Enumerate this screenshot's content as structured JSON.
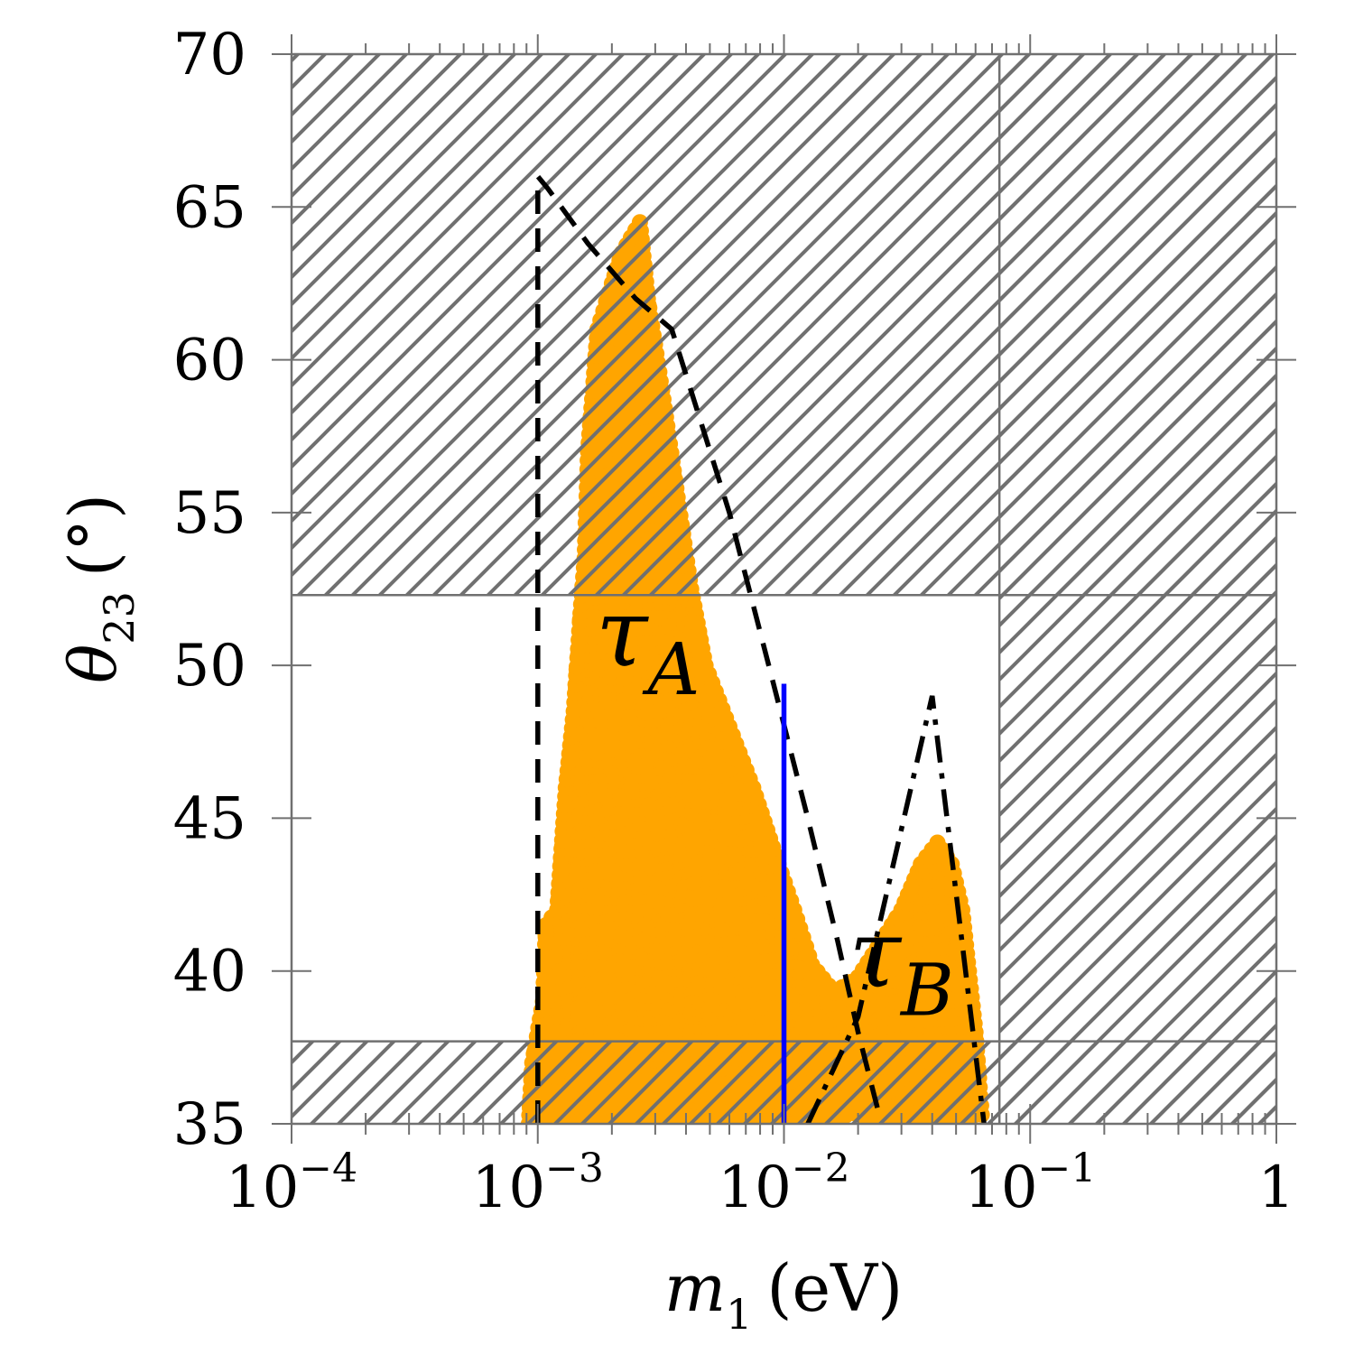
{
  "chart_data": {
    "type": "scatter",
    "title": "",
    "xlabel": {
      "symbol": "m",
      "sub": "1",
      "unit": "(eV)"
    },
    "ylabel": {
      "symbol": "θ",
      "sub": "23",
      "unit": "(°)"
    },
    "xscale": "log",
    "xlim": [
      0.0001,
      1
    ],
    "ylim": [
      35,
      70
    ],
    "x_ticks": [
      {
        "value": 0.0001,
        "base": "10",
        "exp": "−4"
      },
      {
        "value": 0.001,
        "base": "10",
        "exp": "−3"
      },
      {
        "value": 0.01,
        "base": "10",
        "exp": "−2"
      },
      {
        "value": 0.1,
        "base": "10",
        "exp": "−1"
      },
      {
        "value": 1,
        "base": "1",
        "exp": ""
      }
    ],
    "y_ticks": [
      35,
      40,
      45,
      50,
      55,
      60,
      65,
      70
    ],
    "grid": false,
    "excluded_regions": [
      {
        "x": [
          0.0001,
          1
        ],
        "y": [
          52.3,
          70
        ]
      },
      {
        "x": [
          0.0001,
          1
        ],
        "y": [
          35,
          37.7
        ]
      },
      {
        "x": [
          0.075,
          1
        ],
        "y": [
          35,
          70
        ]
      }
    ],
    "allowed_region": {
      "x": [
        0.0001,
        0.075
      ],
      "y": [
        37.7,
        52.3
      ]
    },
    "scatter_envelope": [
      [
        0.00092,
        35.0
      ],
      [
        0.00095,
        37.0
      ],
      [
        0.00105,
        39.0
      ],
      [
        0.00108,
        41.5
      ],
      [
        0.0012,
        42.0
      ],
      [
        0.0013,
        46.0
      ],
      [
        0.0014,
        48.5
      ],
      [
        0.0015,
        52.0
      ],
      [
        0.00155,
        53.5
      ],
      [
        0.0016,
        57.0
      ],
      [
        0.00175,
        61.0
      ],
      [
        0.002,
        62.5
      ],
      [
        0.0022,
        63.5
      ],
      [
        0.0026,
        64.5
      ],
      [
        0.0028,
        62.0
      ],
      [
        0.0032,
        59.0
      ],
      [
        0.0037,
        55.5
      ],
      [
        0.0042,
        52.5
      ],
      [
        0.0048,
        50.0
      ],
      [
        0.006,
        48.0
      ],
      [
        0.0075,
        46.0
      ],
      [
        0.0095,
        43.5
      ],
      [
        0.011,
        42.0
      ],
      [
        0.013,
        40.2
      ],
      [
        0.016,
        39.3
      ],
      [
        0.02,
        39.8
      ],
      [
        0.025,
        41.0
      ],
      [
        0.03,
        42.0
      ],
      [
        0.036,
        43.5
      ],
      [
        0.042,
        44.2
      ],
      [
        0.048,
        43.5
      ],
      [
        0.053,
        42.0
      ],
      [
        0.06,
        38.0
      ],
      [
        0.064,
        35.0
      ]
    ],
    "series": [
      {
        "style": "dashed",
        "color": "#000000",
        "points": [
          [
            0.001,
            35.0
          ],
          [
            0.001,
            66.0
          ],
          [
            0.0011,
            65.6
          ],
          [
            0.0016,
            63.8
          ],
          [
            0.0025,
            62.0
          ],
          [
            0.0035,
            61.0
          ],
          [
            0.006,
            55.0
          ],
          [
            0.009,
            49.5
          ],
          [
            0.0125,
            45.0
          ],
          [
            0.0165,
            41.0
          ],
          [
            0.02,
            38.0
          ],
          [
            0.024,
            35.5
          ]
        ]
      },
      {
        "style": "dash-dot",
        "color": "#000000",
        "points": [
          [
            0.0125,
            35.0
          ],
          [
            0.02,
            38.5
          ],
          [
            0.04,
            49.0
          ],
          [
            0.065,
            35.0
          ]
        ]
      },
      {
        "style": "solid",
        "color": "#0000ff",
        "points": [
          [
            0.01,
            35.0
          ],
          [
            0.01,
            49.4
          ]
        ]
      }
    ],
    "annotations": [
      {
        "symbol": "τ",
        "sub": "A",
        "at": [
          0.0028,
          50.0
        ]
      },
      {
        "symbol": "τ",
        "sub": "B",
        "at": [
          0.03,
          39.5
        ]
      }
    ],
    "colors": {
      "scatter": "#ffa500",
      "hatch": "#707070",
      "frame": "#707070",
      "dashed": "#000000",
      "blue_line": "#0000ff"
    }
  }
}
